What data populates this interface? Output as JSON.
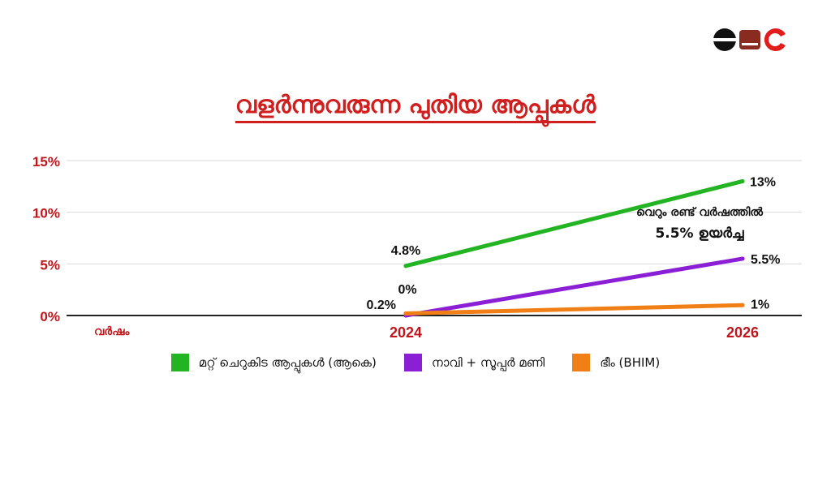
{
  "logo": {
    "colors": [
      "#111111",
      "#8a2b20",
      "#e21b1b"
    ]
  },
  "title": "വളർന്നുവരുന്ന പുതിയ ആപ്പുകൾ",
  "colors": {
    "title": "#d01f1f",
    "axis_labels": "#c0151b",
    "grid": "#d9d9d9",
    "axis": "#222222"
  },
  "chart_data": {
    "type": "line",
    "title": "വളർന്നുവരുന്ന പുതിയ ആപ്പുകൾ",
    "xlabel": "വർഷം",
    "ylabel": "",
    "categories": [
      "2024",
      "2026"
    ],
    "ylim": [
      0,
      15
    ],
    "yticks": [
      "0%",
      "5%",
      "10%",
      "15%"
    ],
    "ytick_values": [
      0,
      5,
      10,
      15
    ],
    "grid": true,
    "legend_position": "bottom",
    "series": [
      {
        "name": "മറ്റ് ചെറുകിട ആപ്പുകൾ  (ആകെ)",
        "color": "#22b422",
        "values": [
          4.8,
          13
        ],
        "labels": [
          "4.8%",
          "13%"
        ]
      },
      {
        "name": "നാവി + സൂപ്പർ മണി",
        "color": "#8a1fd6",
        "values": [
          0,
          5.5
        ],
        "labels": [
          "0%",
          "5.5%"
        ]
      },
      {
        "name": "ഭീം (BHIM)",
        "color": "#f07f16",
        "values": [
          0.2,
          1
        ],
        "labels": [
          "0.2%",
          "1%"
        ]
      }
    ],
    "annotation": {
      "line1": "വെറും രണ്ട് വർഷത്തിൽ",
      "line2": "5.5% ഉയർച്ച"
    }
  }
}
